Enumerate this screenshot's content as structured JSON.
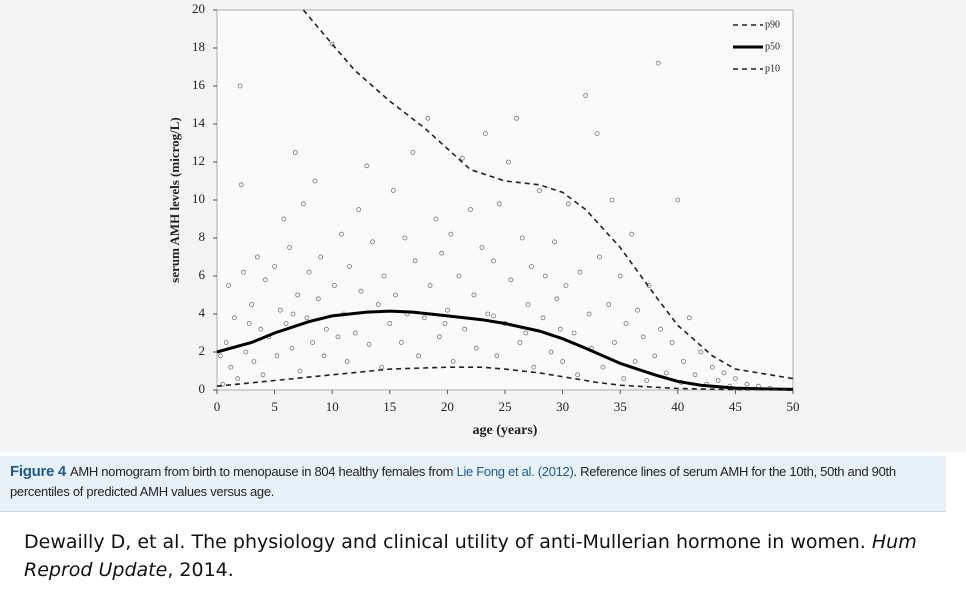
{
  "chart_data": {
    "type": "scatter",
    "xlabel": "age (years)",
    "ylabel": "serum AMH levels (microg/L)",
    "xlim": [
      0,
      50
    ],
    "ylim": [
      0,
      20
    ],
    "xticks": [
      0,
      5,
      10,
      15,
      20,
      25,
      30,
      35,
      40,
      45,
      50
    ],
    "yticks": [
      0,
      2,
      4,
      6,
      8,
      10,
      12,
      14,
      16,
      18,
      20
    ],
    "points": {
      "color": "#777777",
      "x": [
        0.5,
        0.8,
        1,
        1.2,
        1.5,
        1.8,
        2,
        2.1,
        2.3,
        2.5,
        3,
        3.2,
        3.5,
        3.8,
        4,
        4.2,
        4.5,
        5,
        5.2,
        5.5,
        5.8,
        6,
        6.3,
        6.5,
        6.8,
        7,
        7.2,
        7.5,
        7.8,
        8,
        8.3,
        8.5,
        8.8,
        9,
        9.3,
        9.5,
        10,
        10.2,
        10.5,
        10.8,
        11,
        11.3,
        11.5,
        12,
        12.3,
        12.5,
        13,
        13.2,
        13.5,
        14,
        14.3,
        14.5,
        15,
        15.3,
        15.5,
        16,
        16.3,
        16.5,
        17,
        17.2,
        17.5,
        18,
        18.3,
        18.5,
        19,
        19.3,
        19.5,
        20,
        20.3,
        20.5,
        21,
        21.3,
        21.5,
        22,
        22.3,
        22.5,
        23,
        23.3,
        23.5,
        24,
        24.3,
        24.5,
        25,
        25.3,
        25.5,
        26,
        26.3,
        26.5,
        27,
        27.3,
        27.5,
        28,
        28.3,
        28.5,
        29,
        29.3,
        29.5,
        30,
        30.3,
        30.5,
        31,
        31.3,
        31.5,
        32,
        32.3,
        32.5,
        33,
        33.2,
        33.5,
        34,
        34.3,
        34.5,
        35,
        35.3,
        35.5,
        36,
        36.3,
        36.5,
        37,
        37.3,
        37.5,
        38,
        38.3,
        38.5,
        39,
        39.5,
        40,
        40.3,
        40.5,
        41,
        41.5,
        42,
        42.5,
        43,
        43.5,
        44,
        44.5,
        45,
        46,
        47,
        48,
        0.3,
        2.8,
        6.6,
        19.8,
        24,
        26.8,
        29.8
      ],
      "y": [
        0.3,
        2.5,
        5.5,
        1.2,
        3.8,
        0.6,
        16,
        10.8,
        6.2,
        2.0,
        4.5,
        1.5,
        7,
        3.2,
        0.8,
        5.8,
        2.8,
        6.5,
        1.8,
        4.2,
        9,
        3.5,
        7.5,
        2.2,
        12.5,
        5,
        1,
        9.8,
        3.8,
        6.2,
        2.5,
        11,
        4.8,
        7,
        1.8,
        3.2,
        18.2,
        5.5,
        2.8,
        8.2,
        4,
        1.5,
        6.5,
        3,
        9.5,
        5.2,
        11.8,
        2.4,
        7.8,
        4.5,
        1.2,
        6,
        3.5,
        10.5,
        5,
        2.5,
        8,
        4,
        12.5,
        6.8,
        1.8,
        3.8,
        14.3,
        5.5,
        9,
        2.8,
        7.2,
        4.2,
        8.2,
        1.5,
        6,
        12.2,
        3.2,
        9.5,
        5,
        2.2,
        7.5,
        13.5,
        4,
        6.8,
        1.8,
        9.8,
        3.5,
        12,
        5.8,
        14.3,
        2.5,
        8,
        4.5,
        6.5,
        1.2,
        10.5,
        3.8,
        6,
        2,
        7.8,
        4.8,
        1.5,
        5.5,
        9.8,
        3,
        0.8,
        6.2,
        15.5,
        4,
        2.2,
        13.5,
        7,
        1.2,
        4.5,
        10,
        2.5,
        6,
        0.6,
        3.5,
        8.2,
        1.5,
        4.2,
        2.8,
        0.5,
        5.5,
        1.8,
        17.2,
        3.2,
        0.9,
        2.5,
        10,
        0.4,
        1.5,
        3.8,
        0.8,
        2,
        0.3,
        1.2,
        0.5,
        0.9,
        0.2,
        0.6,
        0.3,
        0.2,
        0.1,
        1.8,
        3.5,
        4,
        3.5,
        3.9,
        3,
        3.2
      ]
    },
    "series": [
      {
        "name": "p90",
        "color": "#222222",
        "dash": true,
        "x": [
          7.5,
          10,
          12,
          15,
          18,
          20,
          22,
          25,
          28,
          30,
          32,
          35,
          38,
          40,
          43,
          45,
          48,
          50
        ],
        "values": [
          20,
          18.2,
          16.8,
          15.2,
          13.8,
          12.7,
          11.6,
          11,
          10.8,
          10.4,
          9.5,
          7.5,
          5,
          3.4,
          1.8,
          1.1,
          0.8,
          0.6
        ]
      },
      {
        "name": "p50",
        "color": "#000000",
        "dash": false,
        "x": [
          0,
          3,
          5,
          8,
          10,
          13,
          15,
          17,
          20,
          23,
          25,
          28,
          30,
          32,
          35,
          38,
          40,
          42,
          45,
          48,
          50
        ],
        "values": [
          2,
          2.5,
          3,
          3.6,
          3.9,
          4.1,
          4.15,
          4.1,
          3.9,
          3.7,
          3.5,
          3.1,
          2.7,
          2.2,
          1.4,
          0.8,
          0.45,
          0.25,
          0.1,
          0.05,
          0.03
        ]
      },
      {
        "name": "p10",
        "color": "#222222",
        "dash": true,
        "x": [
          0,
          5,
          10,
          15,
          20,
          23,
          25,
          28,
          30,
          33,
          35,
          40,
          45,
          50
        ],
        "values": [
          0.2,
          0.5,
          0.8,
          1.1,
          1.2,
          1.2,
          1.1,
          0.9,
          0.7,
          0.4,
          0.25,
          0.08,
          0.02,
          0.01
        ]
      }
    ],
    "legend": "upper right"
  },
  "caption": {
    "label": "Figure 4",
    "before": "AMH nomogram from birth to menopause in 804 healthy females from ",
    "link": "Lie Fong et al. (2012)",
    "after": ". Reference lines of serum AMH for the 10th, 50th and 90th percentiles of predicted AMH values versus age."
  },
  "citation": {
    "before": "Dewailly D, et al. The physiology and clinical utility of anti-Mullerian hormone in women. ",
    "journal": "Hum Reprod Update",
    "after": ", 2014."
  }
}
